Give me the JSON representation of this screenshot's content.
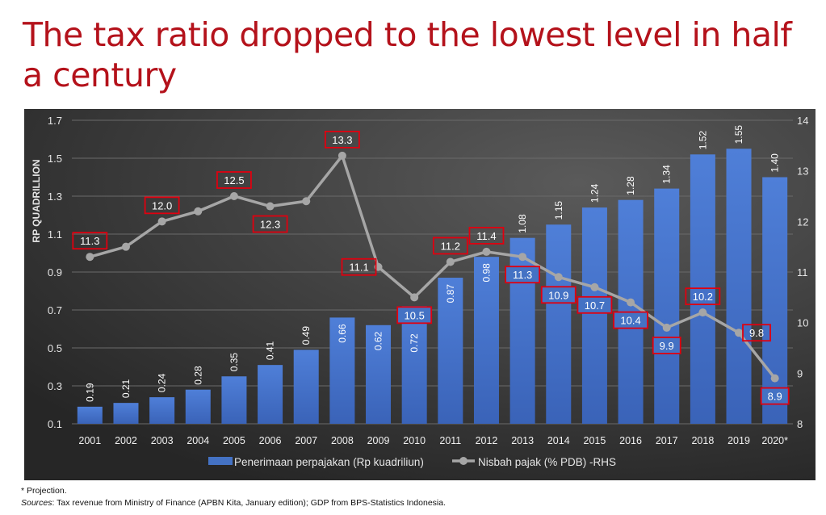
{
  "title": "The tax ratio dropped to the lowest level in half a century",
  "chart_data": {
    "type": "bar+line",
    "categories": [
      "2001",
      "2002",
      "2003",
      "2004",
      "2005",
      "2006",
      "2007",
      "2008",
      "2009",
      "2010",
      "2011",
      "2012",
      "2013",
      "2014",
      "2015",
      "2016",
      "2017",
      "2018",
      "2019",
      "2020*"
    ],
    "series": [
      {
        "name": "Penerimaan perpajakan (Rp kuadriliun)",
        "type": "bar",
        "axis": "left",
        "color": "#4472c4",
        "values": [
          0.19,
          0.21,
          0.24,
          0.28,
          0.35,
          0.41,
          0.49,
          0.66,
          0.62,
          0.72,
          0.87,
          0.98,
          1.08,
          1.15,
          1.24,
          1.28,
          1.34,
          1.52,
          1.55,
          1.4
        ],
        "labels": [
          "0.19",
          "0.21",
          "0.24",
          "0.28",
          "0.35",
          "0.41",
          "0.49",
          "0.66",
          "0.62",
          "0.72",
          "0.87",
          "0.98",
          "1.08",
          "1.15",
          "1.24",
          "1.28",
          "1.34",
          "1.52",
          "1.55",
          "1.40"
        ]
      },
      {
        "name": "Nisbah pajak (% PDB) -RHS",
        "type": "line",
        "axis": "right",
        "color": "#a6a6a6",
        "values": [
          11.3,
          11.5,
          12.0,
          12.2,
          12.5,
          12.3,
          12.4,
          13.3,
          11.1,
          10.5,
          11.2,
          11.4,
          11.3,
          10.9,
          10.7,
          10.4,
          9.9,
          10.2,
          9.8,
          8.9
        ],
        "labels": [
          "11.3",
          "",
          "12.0",
          "",
          "12.5",
          "12.3",
          "",
          "13.3",
          "11.1",
          "10.5",
          "11.2",
          "11.4",
          "11.3",
          "10.9",
          "10.7",
          "10.4",
          "9.9",
          "10.2",
          "9.8",
          "8.9"
        ]
      }
    ],
    "ylabel": "RP QUADRILLION",
    "ylim": [
      0.1,
      1.7
    ],
    "yticks": [
      "0.1",
      "0.3",
      "0.5",
      "0.7",
      "0.9",
      "1.1",
      "1.3",
      "1.5",
      "1.7"
    ],
    "y2lim": [
      8,
      14
    ],
    "y2ticks": [
      "8",
      "9",
      "10",
      "11",
      "12",
      "13",
      "14"
    ],
    "grid": true,
    "legend": "bottom",
    "label_box_color": "#e0000f"
  },
  "footnote": {
    "projection": "* Projection.",
    "sources_label": "Sources",
    "sources_text": ": Tax revenue from Ministry of Finance (APBN Kita, January edition); GDP from BPS-Statistics Indonesia."
  }
}
